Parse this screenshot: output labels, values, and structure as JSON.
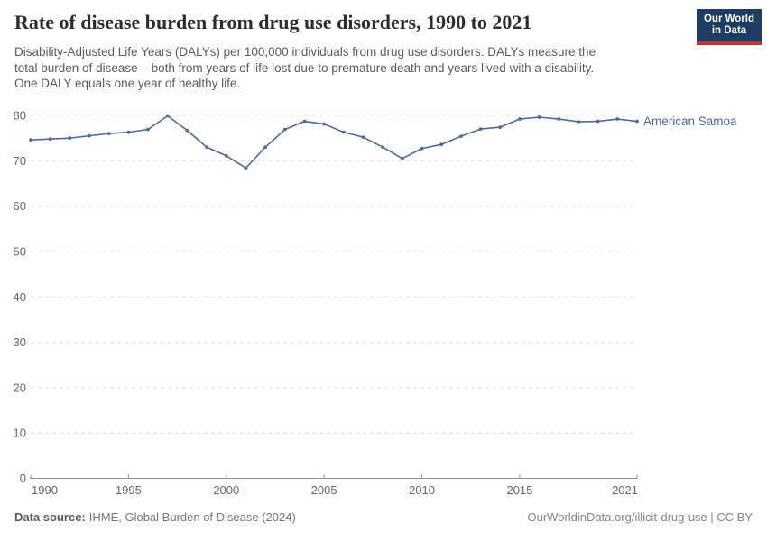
{
  "header": {
    "title": "Rate of disease burden from drug use disorders, 1990 to 2021",
    "subtitle": "Disability-Adjusted Life Years (DALYs) per 100,000 individuals from drug use disorders. DALYs measure the\ntotal burden of disease – both from years of life lost due to premature death and years lived with a disability.\nOne DALY equals one year of healthy life.",
    "logo": {
      "line1": "Our World",
      "line2": "in Data"
    }
  },
  "chart_data": {
    "type": "line",
    "title": "Rate of disease burden from drug use disorders, 1990 to 2021",
    "xlabel": "",
    "ylabel": "DALYs per 100,000 individuals",
    "xlim": [
      1990,
      2021
    ],
    "ylim": [
      0,
      80
    ],
    "x_ticks": [
      1990,
      1995,
      2000,
      2005,
      2010,
      2015,
      2021
    ],
    "y_ticks": [
      0,
      10,
      20,
      30,
      40,
      50,
      60,
      70,
      80
    ],
    "grid": "horizontal-dashed",
    "legend_position": "end-of-line-label",
    "x": [
      1990,
      1991,
      1992,
      1993,
      1994,
      1995,
      1996,
      1997,
      1998,
      1999,
      2000,
      2001,
      2002,
      2003,
      2004,
      2005,
      2006,
      2007,
      2008,
      2009,
      2010,
      2011,
      2012,
      2013,
      2014,
      2015,
      2016,
      2017,
      2018,
      2019,
      2020,
      2021
    ],
    "series": [
      {
        "name": "American Samoa",
        "color": "#4C6A9C",
        "values": [
          74.6,
          74.8,
          75.0,
          75.5,
          76.0,
          76.3,
          76.9,
          79.9,
          76.7,
          73.0,
          71.1,
          68.4,
          73.0,
          76.9,
          78.7,
          78.1,
          76.3,
          75.2,
          73.0,
          70.5,
          72.7,
          73.6,
          75.4,
          77.0,
          77.4,
          79.2,
          79.6,
          79.2,
          78.6,
          78.7,
          79.2,
          78.7
        ]
      }
    ]
  },
  "footer": {
    "source_label": "Data source:",
    "source_value": "IHME, Global Burden of Disease (2024)",
    "credit": "OurWorldinData.org/illicit-drug-use | CC BY"
  },
  "colors": {
    "series_blue": "#4C6A9C",
    "gridline": "#dcdcdc",
    "axis": "#8f8f8f",
    "tick_label": "#666666",
    "title_text": "#2d2d2d",
    "subtitle_text": "#5a5a5a",
    "logo_bg": "#1d3d63",
    "logo_accent": "#c0372d"
  }
}
